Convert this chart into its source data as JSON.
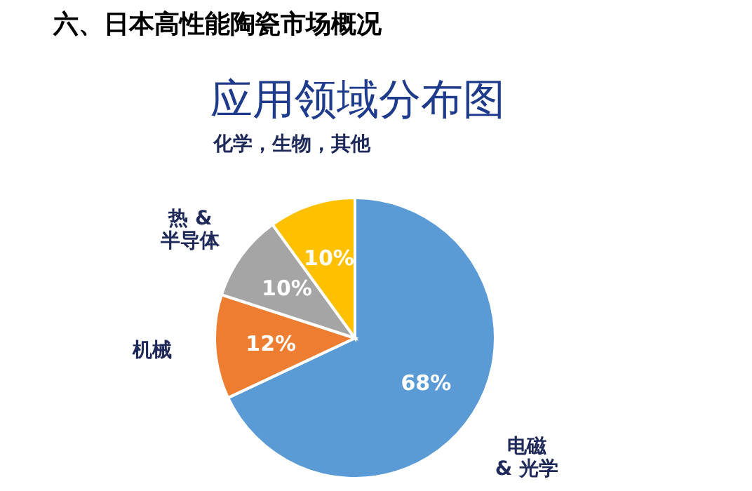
{
  "chart_data": {
    "type": "pie",
    "title": "应用领域分布图",
    "annotations": [
      "六、日本高性能陶瓷市场概况"
    ],
    "categories": [
      "电磁\n& 光学",
      "机械",
      "热 &\n半导体",
      "化学，生物，其他"
    ],
    "values": [
      68,
      12,
      10,
      10
    ],
    "value_labels": [
      "68%",
      "12%",
      "10%",
      "10%"
    ],
    "colors": [
      "#5b9bd5",
      "#ed7d31",
      "#a5a5a5",
      "#ffc000"
    ],
    "legend": false
  }
}
